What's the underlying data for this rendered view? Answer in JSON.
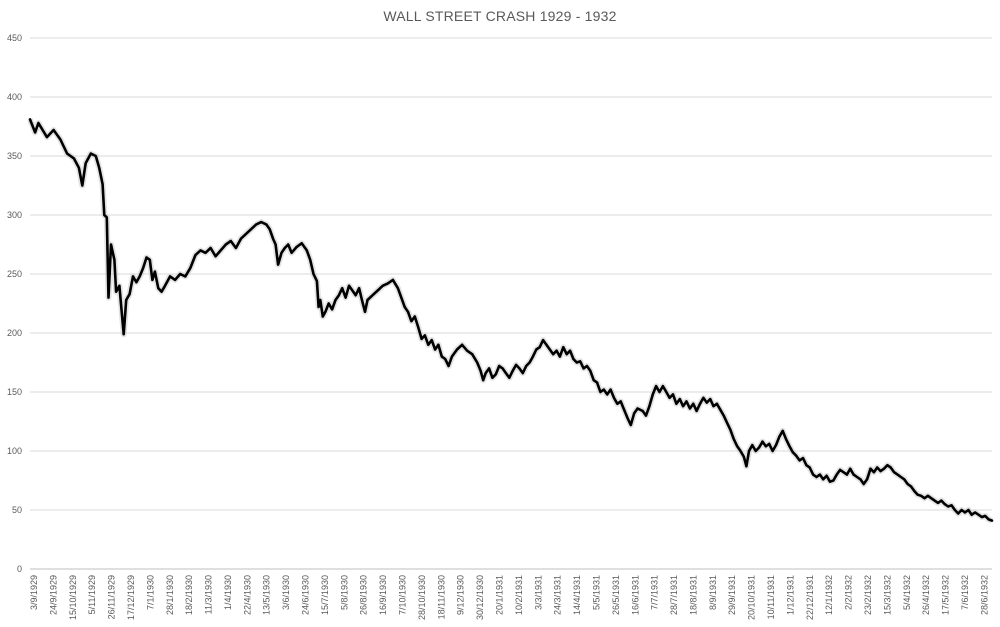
{
  "chart_data": {
    "type": "line",
    "title": "WALL STREET CRASH 1929 - 1932",
    "xlabel": "",
    "ylabel": "",
    "ylim": [
      0,
      450
    ],
    "yticks": [
      0,
      50,
      100,
      150,
      200,
      250,
      300,
      350,
      400,
      450
    ],
    "grid": true,
    "legend": "none",
    "line_color": "#000000",
    "x_tick_labels": [
      "3/9/1929",
      "24/9/1929",
      "15/10/1929",
      "5/11/1929",
      "26/11/1929",
      "17/12/1929",
      "7/1/1930",
      "28/1/1930",
      "18/2/1930",
      "11/3/1930",
      "1/4/1930",
      "22/4/1930",
      "13/5/1930",
      "3/6/1930",
      "24/6/1930",
      "15/7/1930",
      "5/8/1930",
      "26/8/1930",
      "16/9/1930",
      "7/10/1930",
      "28/10/1930",
      "18/11/1930",
      "9/12/1930",
      "30/12/1930",
      "20/1/1931",
      "10/2/1931",
      "3/3/1931",
      "24/3/1931",
      "14/4/1931",
      "5/5/1931",
      "26/5/1931",
      "16/6/1931",
      "7/7/1931",
      "28/7/1931",
      "18/8/1931",
      "8/9/1931",
      "29/9/1931",
      "20/10/1931",
      "10/11/1931",
      "1/12/1931",
      "22/12/1931",
      "12/1/1932",
      "2/2/1932",
      "23/2/1932",
      "15/3/1932",
      "5/4/1932",
      "26/4/1932",
      "17/5/1932",
      "7/6/1932",
      "28/6/1932"
    ],
    "series": [
      {
        "values": [
          [
            0,
            381
          ],
          [
            0.3,
            370
          ],
          [
            0.5,
            378
          ],
          [
            1,
            366
          ],
          [
            1.4,
            372
          ],
          [
            1.8,
            364
          ],
          [
            2.2,
            352
          ],
          [
            2.6,
            348
          ],
          [
            2.9,
            340
          ],
          [
            3.1,
            325
          ],
          [
            3.3,
            344
          ],
          [
            3.6,
            352
          ],
          [
            3.9,
            350
          ],
          [
            4.1,
            340
          ],
          [
            4.3,
            326
          ],
          [
            4.4,
            300
          ],
          [
            4.55,
            298
          ],
          [
            4.65,
            230
          ],
          [
            4.8,
            275
          ],
          [
            5.0,
            262
          ],
          [
            5.1,
            235
          ],
          [
            5.3,
            240
          ],
          [
            5.45,
            215
          ],
          [
            5.55,
            199
          ],
          [
            5.7,
            228
          ],
          [
            5.9,
            233
          ],
          [
            6.1,
            248
          ],
          [
            6.3,
            243
          ],
          [
            6.5,
            248
          ],
          [
            6.7,
            255
          ],
          [
            6.9,
            264
          ],
          [
            7.1,
            262
          ],
          [
            7.25,
            245
          ],
          [
            7.4,
            252
          ],
          [
            7.6,
            238
          ],
          [
            7.8,
            235
          ],
          [
            8.0,
            240
          ],
          [
            8.3,
            248
          ],
          [
            8.6,
            245
          ],
          [
            8.9,
            250
          ],
          [
            9.2,
            248
          ],
          [
            9.5,
            255
          ],
          [
            9.8,
            266
          ],
          [
            10.1,
            270
          ],
          [
            10.4,
            268
          ],
          [
            10.7,
            272
          ],
          [
            11.0,
            265
          ],
          [
            11.3,
            270
          ],
          [
            11.6,
            275
          ],
          [
            11.9,
            278
          ],
          [
            12.2,
            272
          ],
          [
            12.5,
            280
          ],
          [
            12.8,
            284
          ],
          [
            13.1,
            288
          ],
          [
            13.4,
            292
          ],
          [
            13.7,
            294
          ],
          [
            14.0,
            292
          ],
          [
            14.2,
            288
          ],
          [
            14.4,
            280
          ],
          [
            14.55,
            275
          ],
          [
            14.7,
            258
          ],
          [
            14.9,
            268
          ],
          [
            15.1,
            272
          ],
          [
            15.3,
            275
          ],
          [
            15.5,
            268
          ],
          [
            15.8,
            273
          ],
          [
            16.1,
            276
          ],
          [
            16.4,
            270
          ],
          [
            16.6,
            262
          ],
          [
            16.8,
            250
          ],
          [
            17.0,
            244
          ],
          [
            17.1,
            222
          ],
          [
            17.2,
            228
          ],
          [
            17.35,
            214
          ],
          [
            17.5,
            218
          ],
          [
            17.7,
            225
          ],
          [
            17.9,
            220
          ],
          [
            18.1,
            228
          ],
          [
            18.3,
            232
          ],
          [
            18.5,
            238
          ],
          [
            18.7,
            230
          ],
          [
            18.9,
            240
          ],
          [
            19.1,
            236
          ],
          [
            19.3,
            232
          ],
          [
            19.5,
            238
          ],
          [
            19.7,
            226
          ],
          [
            19.85,
            218
          ],
          [
            20.0,
            228
          ],
          [
            20.3,
            232
          ],
          [
            20.6,
            236
          ],
          [
            20.9,
            240
          ],
          [
            21.2,
            242
          ],
          [
            21.5,
            245
          ],
          [
            21.8,
            238
          ],
          [
            22.0,
            230
          ],
          [
            22.2,
            222
          ],
          [
            22.4,
            218
          ],
          [
            22.6,
            210
          ],
          [
            22.8,
            214
          ],
          [
            23.0,
            205
          ],
          [
            23.2,
            195
          ],
          [
            23.4,
            198
          ],
          [
            23.6,
            190
          ],
          [
            23.8,
            194
          ],
          [
            24.0,
            186
          ],
          [
            24.2,
            190
          ],
          [
            24.4,
            180
          ],
          [
            24.6,
            178
          ],
          [
            24.8,
            172
          ],
          [
            25.0,
            180
          ],
          [
            25.3,
            186
          ],
          [
            25.6,
            190
          ],
          [
            25.9,
            185
          ],
          [
            26.2,
            182
          ],
          [
            26.5,
            175
          ],
          [
            26.7,
            168
          ],
          [
            26.85,
            160
          ],
          [
            27.0,
            166
          ],
          [
            27.2,
            170
          ],
          [
            27.4,
            162
          ],
          [
            27.6,
            165
          ],
          [
            27.8,
            172
          ],
          [
            28.0,
            170
          ],
          [
            28.2,
            166
          ],
          [
            28.4,
            162
          ],
          [
            28.6,
            168
          ],
          [
            28.8,
            173
          ],
          [
            29.0,
            170
          ],
          [
            29.2,
            166
          ],
          [
            29.4,
            172
          ],
          [
            29.6,
            175
          ],
          [
            29.8,
            180
          ],
          [
            30.0,
            186
          ],
          [
            30.2,
            188
          ],
          [
            30.4,
            194
          ],
          [
            30.6,
            190
          ],
          [
            30.8,
            186
          ],
          [
            31.0,
            182
          ],
          [
            31.2,
            185
          ],
          [
            31.4,
            180
          ],
          [
            31.6,
            188
          ],
          [
            31.8,
            182
          ],
          [
            32.0,
            185
          ],
          [
            32.2,
            178
          ],
          [
            32.4,
            175
          ],
          [
            32.6,
            176
          ],
          [
            32.8,
            170
          ],
          [
            33.0,
            172
          ],
          [
            33.2,
            168
          ],
          [
            33.4,
            160
          ],
          [
            33.6,
            158
          ],
          [
            33.8,
            150
          ],
          [
            34.0,
            152
          ],
          [
            34.2,
            148
          ],
          [
            34.4,
            152
          ],
          [
            34.6,
            145
          ],
          [
            34.8,
            140
          ],
          [
            35.0,
            142
          ],
          [
            35.2,
            135
          ],
          [
            35.4,
            128
          ],
          [
            35.6,
            122
          ],
          [
            35.8,
            132
          ],
          [
            36.0,
            136
          ],
          [
            36.3,
            134
          ],
          [
            36.5,
            130
          ],
          [
            36.7,
            138
          ],
          [
            36.9,
            148
          ],
          [
            37.1,
            155
          ],
          [
            37.3,
            150
          ],
          [
            37.5,
            155
          ],
          [
            37.7,
            150
          ],
          [
            37.9,
            145
          ],
          [
            38.1,
            148
          ],
          [
            38.3,
            140
          ],
          [
            38.5,
            144
          ],
          [
            38.7,
            138
          ],
          [
            38.9,
            142
          ],
          [
            39.1,
            136
          ],
          [
            39.3,
            140
          ],
          [
            39.5,
            134
          ],
          [
            39.7,
            140
          ],
          [
            39.9,
            145
          ],
          [
            40.1,
            141
          ],
          [
            40.3,
            144
          ],
          [
            40.5,
            138
          ],
          [
            40.7,
            140
          ],
          [
            40.9,
            135
          ],
          [
            41.1,
            130
          ],
          [
            41.3,
            124
          ],
          [
            41.5,
            118
          ],
          [
            41.7,
            110
          ],
          [
            41.9,
            104
          ],
          [
            42.1,
            100
          ],
          [
            42.3,
            95
          ],
          [
            42.45,
            87
          ],
          [
            42.6,
            100
          ],
          [
            42.8,
            105
          ],
          [
            43.0,
            100
          ],
          [
            43.2,
            103
          ],
          [
            43.4,
            108
          ],
          [
            43.6,
            104
          ],
          [
            43.8,
            106
          ],
          [
            44.0,
            100
          ],
          [
            44.2,
            105
          ],
          [
            44.4,
            112
          ],
          [
            44.6,
            117
          ],
          [
            44.8,
            110
          ],
          [
            45.0,
            104
          ],
          [
            45.2,
            99
          ],
          [
            45.4,
            96
          ],
          [
            45.6,
            92
          ],
          [
            45.8,
            94
          ],
          [
            46.0,
            88
          ],
          [
            46.2,
            86
          ],
          [
            46.4,
            80
          ],
          [
            46.6,
            78
          ],
          [
            46.8,
            80
          ],
          [
            47.0,
            76
          ],
          [
            47.2,
            79
          ],
          [
            47.4,
            74
          ],
          [
            47.6,
            75
          ],
          [
            47.8,
            80
          ],
          [
            48.0,
            84
          ],
          [
            48.2,
            82
          ],
          [
            48.4,
            80
          ],
          [
            48.6,
            85
          ],
          [
            48.8,
            80
          ],
          [
            49.0,
            78
          ],
          [
            49.2,
            76
          ],
          [
            49.4,
            72
          ],
          [
            49.6,
            76
          ],
          [
            49.8,
            85
          ],
          [
            50.0,
            82
          ],
          [
            50.2,
            86
          ],
          [
            50.4,
            83
          ],
          [
            50.6,
            85
          ],
          [
            50.8,
            88
          ],
          [
            51.0,
            86
          ],
          [
            51.2,
            82
          ],
          [
            51.4,
            80
          ],
          [
            51.6,
            78
          ],
          [
            51.8,
            76
          ],
          [
            52.0,
            72
          ],
          [
            52.2,
            70
          ],
          [
            52.4,
            66
          ],
          [
            52.6,
            63
          ],
          [
            52.8,
            62
          ],
          [
            53.0,
            60
          ],
          [
            53.2,
            62
          ],
          [
            53.4,
            60
          ],
          [
            53.6,
            58
          ],
          [
            53.8,
            56
          ],
          [
            54.0,
            58
          ],
          [
            54.2,
            55
          ],
          [
            54.4,
            53
          ],
          [
            54.6,
            54
          ],
          [
            54.8,
            50
          ],
          [
            55.0,
            47
          ],
          [
            55.2,
            50
          ],
          [
            55.4,
            48
          ],
          [
            55.6,
            50
          ],
          [
            55.8,
            46
          ],
          [
            56.0,
            48
          ],
          [
            56.2,
            46
          ],
          [
            56.4,
            44
          ],
          [
            56.6,
            45
          ],
          [
            56.8,
            42
          ],
          [
            57.0,
            41
          ]
        ]
      }
    ]
  }
}
